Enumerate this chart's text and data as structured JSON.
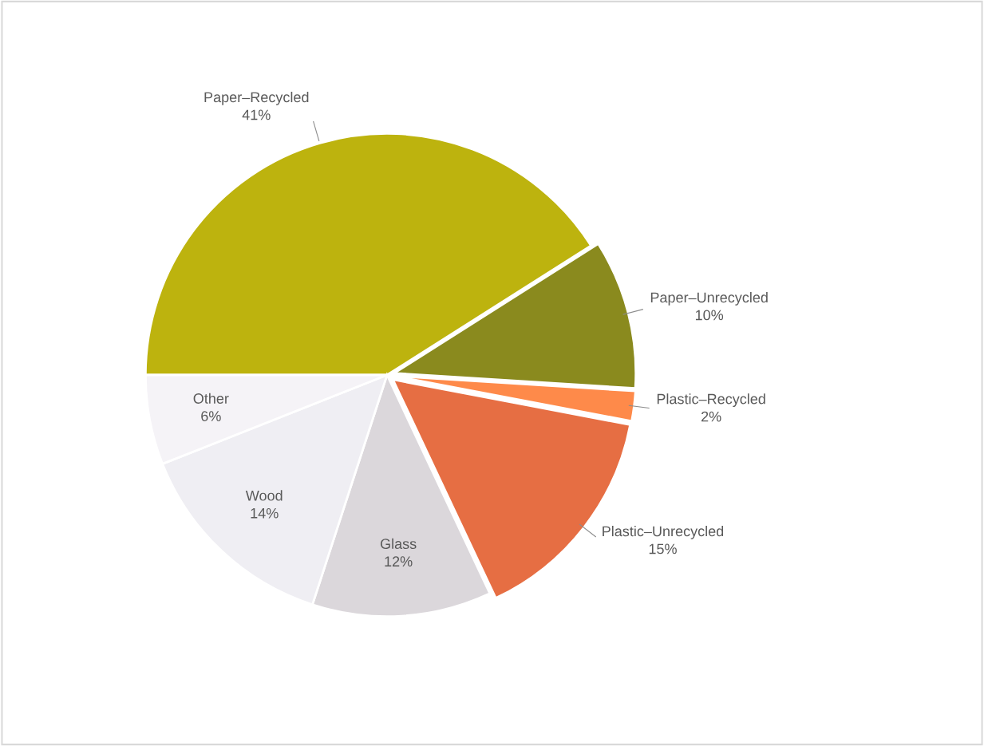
{
  "chart_data": {
    "type": "pie",
    "categories": [
      "Paper–Recycled",
      "Paper–Unrecycled",
      "Plastic–Recycled",
      "Plastic–Unrecycled",
      "Glass",
      "Wood",
      "Other"
    ],
    "values": [
      41,
      10,
      2,
      15,
      12,
      14,
      6
    ],
    "value_labels": [
      "41%",
      "10%",
      "2%",
      "15%",
      "12%",
      "14%",
      "6%"
    ],
    "colors": [
      "#bdb30e",
      "#8a8a1e",
      "#fe8a4a",
      "#e66e43",
      "#dbd7db",
      "#efeef3",
      "#f5f3f7"
    ],
    "legend": false
  }
}
